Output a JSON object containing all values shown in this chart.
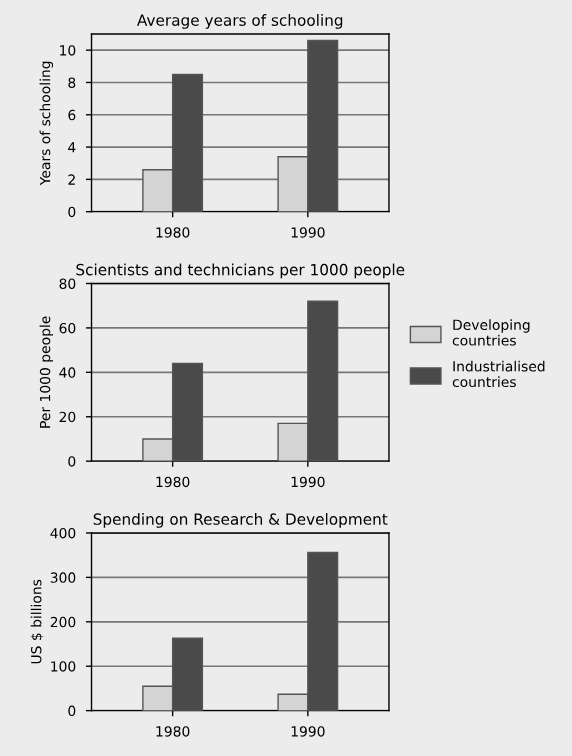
{
  "chart_data": [
    {
      "type": "bar",
      "title": "Average years of schooling",
      "ylabel": "Years of schooling",
      "categories": [
        "1980",
        "1990"
      ],
      "series": [
        {
          "color": "#d4d4d4",
          "values": [
            2.6,
            3.4
          ]
        },
        {
          "color": "#4a4a4a",
          "values": [
            8.5,
            10.6
          ]
        }
      ],
      "ylim": [
        0,
        11
      ],
      "yticks": [
        0,
        2,
        4,
        6,
        8,
        10
      ],
      "grid": "y"
    },
    {
      "type": "bar",
      "title": "Scientists and technicians per 1000 people",
      "ylabel": "Per 1000 people",
      "categories": [
        "1980",
        "1990"
      ],
      "series": [
        {
          "name": "Developing countries",
          "color": "#d4d4d4",
          "values": [
            10,
            17
          ]
        },
        {
          "name": "Industrialised countries",
          "color": "#4a4a4a",
          "values": [
            44,
            72
          ]
        }
      ],
      "ylim": [
        0,
        80
      ],
      "yticks": [
        0,
        20,
        40,
        60,
        80
      ],
      "grid": "y",
      "legend": "right"
    },
    {
      "type": "bar",
      "title": "Spending on Research & Development",
      "ylabel": "US $ billions",
      "categories": [
        "1980",
        "1990"
      ],
      "series": [
        {
          "color": "#d4d4d4",
          "values": [
            55,
            37
          ]
        },
        {
          "color": "#4a4a4a",
          "values": [
            163,
            356
          ]
        }
      ],
      "ylim": [
        0,
        400
      ],
      "yticks": [
        0,
        100,
        200,
        300,
        400
      ],
      "grid": "y"
    }
  ]
}
